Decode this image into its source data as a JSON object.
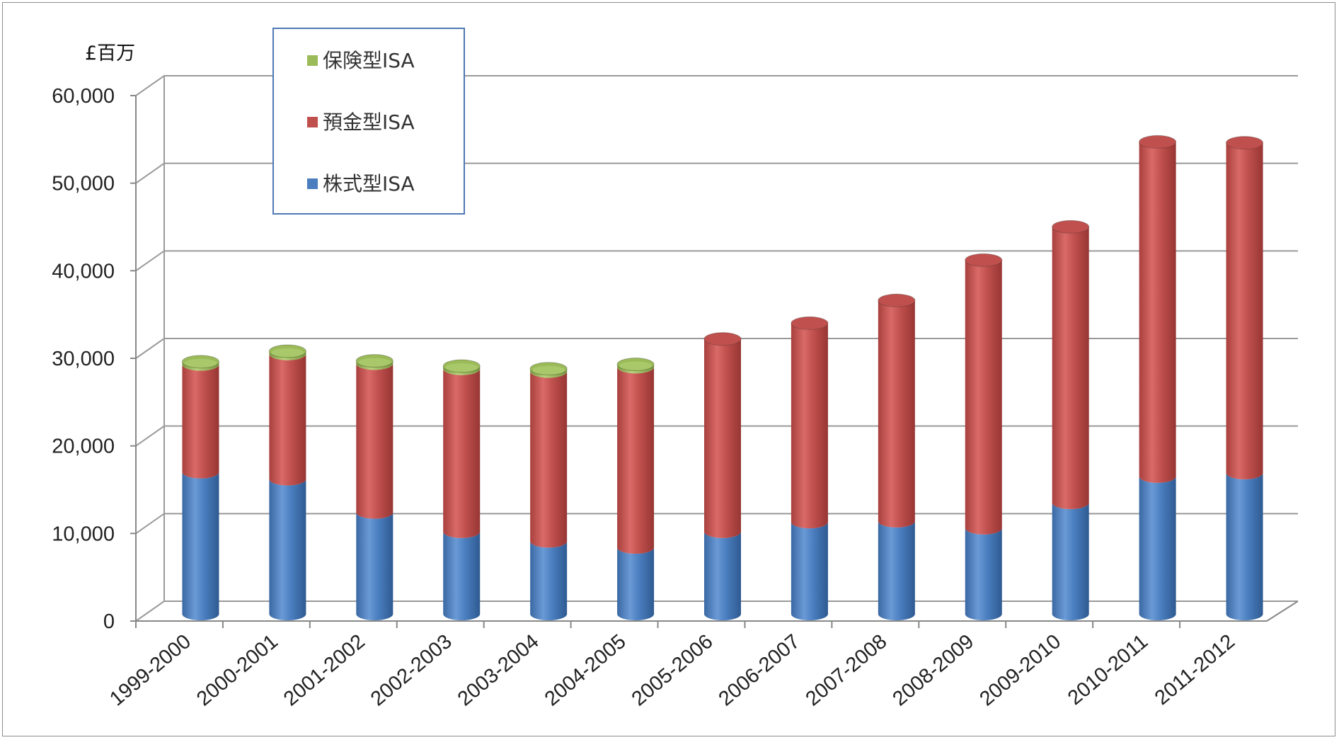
{
  "chart_data": {
    "type": "bar",
    "stacked": true,
    "style": "3d-cylinder",
    "title": "",
    "ylabel": "£百万",
    "xlabel": "",
    "ylim": [
      0,
      60000
    ],
    "yticks": [
      "0",
      "10,000",
      "20,000",
      "30,000",
      "40,000",
      "50,000",
      "60,000"
    ],
    "grid": true,
    "legend_position": "top-left",
    "categories": [
      "1999-2000",
      "2000-2001",
      "2001-2002",
      "2002-2003",
      "2003-2004",
      "2004-2005",
      "2005-2006",
      "2006-2007",
      "2007-2008",
      "2008-2009",
      "2009-2010",
      "2010-2011",
      "2011-2012"
    ],
    "series": [
      {
        "name": "株式型ISA",
        "color": "#4a7ebf",
        "values": [
          16200,
          15400,
          11600,
          9400,
          8300,
          7600,
          9400,
          10500,
          10600,
          9800,
          12700,
          15700,
          16100
        ]
      },
      {
        "name": "預金型ISA",
        "color": "#c0504d",
        "values": [
          12300,
          14300,
          17000,
          18600,
          19400,
          20600,
          22000,
          22700,
          25200,
          30600,
          31500,
          38200,
          37700
        ]
      },
      {
        "name": "保険型ISA",
        "color": "#9bbb59",
        "values": [
          300,
          300,
          300,
          300,
          300,
          300,
          0,
          0,
          0,
          0,
          0,
          0,
          0
        ]
      }
    ],
    "legend_order": [
      "保険型ISA",
      "預金型ISA",
      "株式型ISA"
    ]
  }
}
